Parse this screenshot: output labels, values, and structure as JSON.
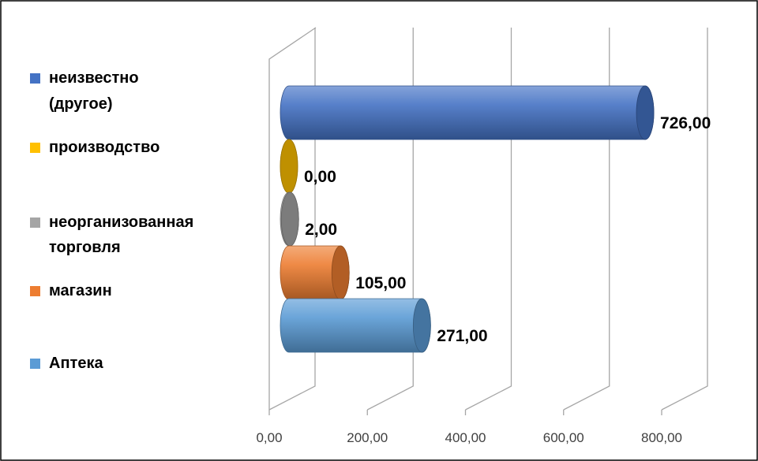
{
  "chart_data": {
    "type": "cylinder-bar",
    "series": [
      {
        "name": "неизвестно (другое)",
        "color": "#4472c4",
        "values": [
          726
        ],
        "value_labels": [
          "726,00"
        ]
      },
      {
        "name": "производство",
        "color": "#ffc000",
        "values": [
          0
        ],
        "value_labels": [
          "0,00"
        ]
      },
      {
        "name": "неорганизованная торговля",
        "color": "#a5a5a5",
        "values": [
          2
        ],
        "value_labels": [
          "2,00"
        ]
      },
      {
        "name": "магазин",
        "color": "#ed7d31",
        "values": [
          105
        ],
        "value_labels": [
          "105,00"
        ]
      },
      {
        "name": "Аптека",
        "color": "#5b9bd5",
        "values": [
          271
        ],
        "value_labels": [
          "271,00"
        ]
      }
    ],
    "xlim": [
      0,
      800
    ],
    "xticks": [
      {
        "value": 0,
        "label": "0,00"
      },
      {
        "value": 200,
        "label": "200,00"
      },
      {
        "value": 400,
        "label": "400,00"
      },
      {
        "value": 600,
        "label": "600,00"
      },
      {
        "value": 800,
        "label": "800,00"
      }
    ],
    "grid": true,
    "legend": "left"
  }
}
